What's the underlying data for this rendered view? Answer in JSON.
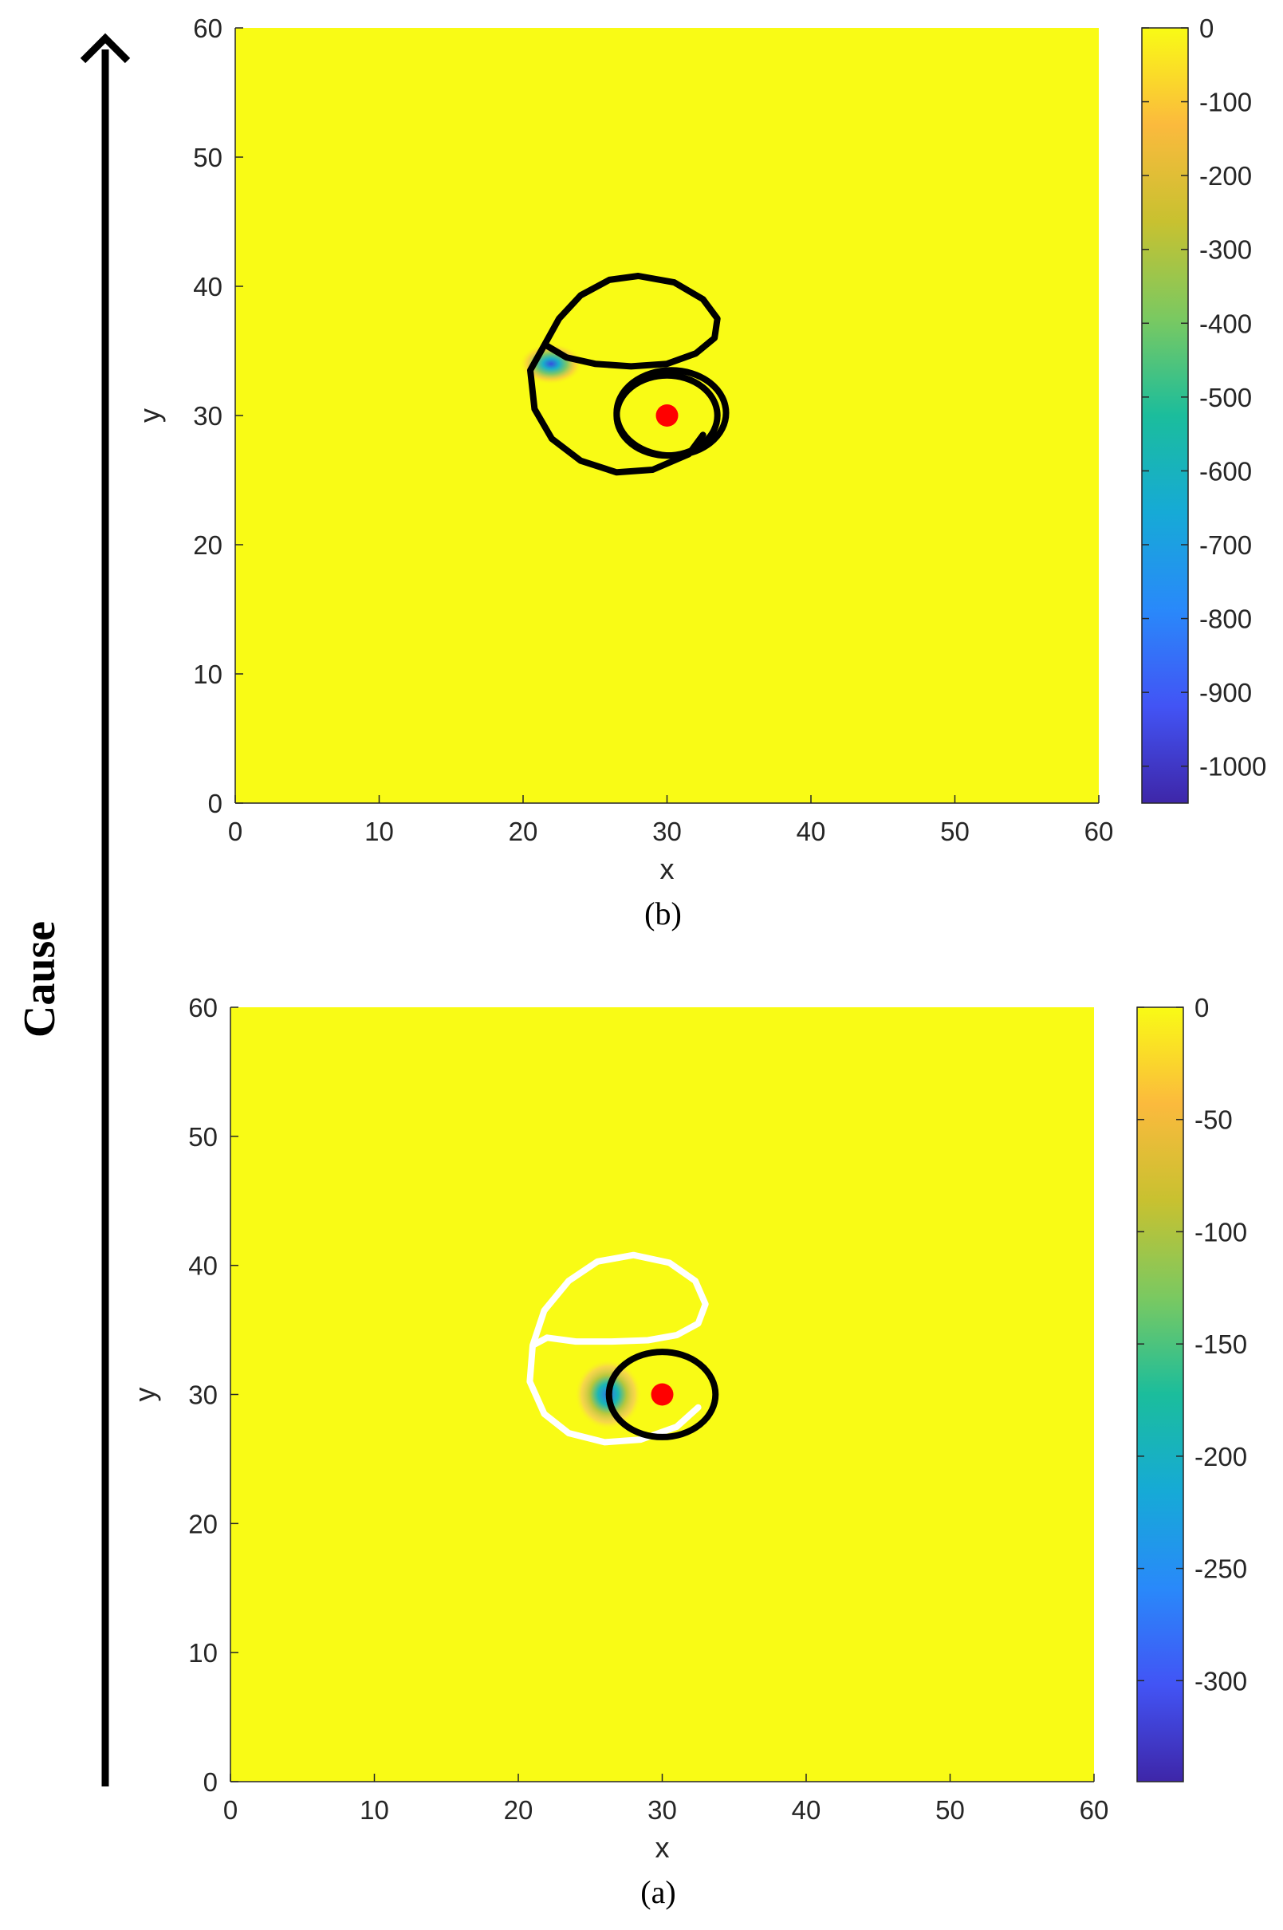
{
  "side_label": "Cause",
  "chart_data": [
    {
      "type": "heatmap",
      "panel": "(b)",
      "xlabel": "x",
      "ylabel": "y",
      "xlim": [
        0,
        60
      ],
      "ylim": [
        0,
        60
      ],
      "xticks": [
        0,
        10,
        20,
        30,
        40,
        50,
        60
      ],
      "yticks": [
        0,
        10,
        20,
        30,
        40,
        50,
        60
      ],
      "colorbar": {
        "range": [
          -1050,
          0
        ],
        "ticks": [
          0,
          -100,
          -200,
          -300,
          -400,
          -500,
          -600,
          -700,
          -800,
          -900,
          -1000
        ],
        "colormap": "parula"
      },
      "background_value": 0,
      "hotspot": {
        "x": 21.5,
        "y": 34,
        "min_value": -1000
      },
      "source_point": {
        "x": 30,
        "y": 30,
        "color": "#ff0000"
      },
      "curves": [
        {
          "name": "outer",
          "color": "#000000",
          "points": [
            [
              21.5,
              35.5
            ],
            [
              22.5,
              37.5
            ],
            [
              24,
              39.3
            ],
            [
              26,
              40.5
            ],
            [
              28,
              40.8
            ],
            [
              30.5,
              40.3
            ],
            [
              32.5,
              39
            ],
            [
              33.5,
              37.5
            ],
            [
              33.3,
              36
            ],
            [
              32,
              34.8
            ],
            [
              30,
              34
            ],
            [
              27.5,
              33.8
            ],
            [
              25,
              34
            ],
            [
              23,
              34.5
            ],
            [
              21.5,
              35.5
            ],
            [
              20.5,
              33.5
            ],
            [
              20.8,
              30.5
            ],
            [
              22,
              28.2
            ],
            [
              24,
              26.5
            ],
            [
              26.5,
              25.6
            ],
            [
              29,
              25.8
            ],
            [
              31.5,
              27
            ],
            [
              32.5,
              28.5
            ]
          ]
        },
        {
          "name": "inner-1",
          "color": "#000000",
          "center": [
            30.3,
            30.2
          ],
          "radius": [
            3.8,
            3.3
          ]
        },
        {
          "name": "inner-2",
          "color": "#000000",
          "center": [
            30.0,
            30.0
          ],
          "radius": [
            3.5,
            3.1
          ]
        }
      ]
    },
    {
      "type": "heatmap",
      "panel": "(a)",
      "xlabel": "x",
      "ylabel": "y",
      "xlim": [
        0,
        60
      ],
      "ylim": [
        0,
        60
      ],
      "xticks": [
        0,
        10,
        20,
        30,
        40,
        50,
        60
      ],
      "yticks": [
        0,
        10,
        20,
        30,
        40,
        50,
        60
      ],
      "colorbar": {
        "range": [
          -345,
          0
        ],
        "ticks": [
          0,
          -50,
          -100,
          -150,
          -200,
          -250,
          -300
        ],
        "colormap": "parula"
      },
      "background_value": 0,
      "hotspot": {
        "x": 25.8,
        "y": 30,
        "min_value": -300
      },
      "source_point": {
        "x": 30,
        "y": 30,
        "color": "#ff0000"
      },
      "curves": [
        {
          "name": "outer",
          "color": "#ffffff",
          "points": [
            [
              21,
              33.8
            ],
            [
              21.8,
              36.5
            ],
            [
              23.5,
              38.8
            ],
            [
              25.5,
              40.3
            ],
            [
              28,
              40.8
            ],
            [
              30.5,
              40.2
            ],
            [
              32.3,
              38.8
            ],
            [
              33,
              37
            ],
            [
              32.5,
              35.5
            ],
            [
              31,
              34.6
            ],
            [
              29,
              34.2
            ],
            [
              26.5,
              34.1
            ],
            [
              24,
              34.1
            ],
            [
              22,
              34.4
            ],
            [
              21,
              33.8
            ],
            [
              20.8,
              31
            ],
            [
              21.8,
              28.5
            ],
            [
              23.5,
              27
            ],
            [
              26,
              26.3
            ],
            [
              28.5,
              26.5
            ],
            [
              31,
              27.5
            ],
            [
              32.5,
              29
            ]
          ]
        },
        {
          "name": "inner",
          "color": "#000000",
          "center": [
            30.0,
            30.0
          ],
          "radius": [
            3.7,
            3.3
          ]
        }
      ]
    }
  ]
}
